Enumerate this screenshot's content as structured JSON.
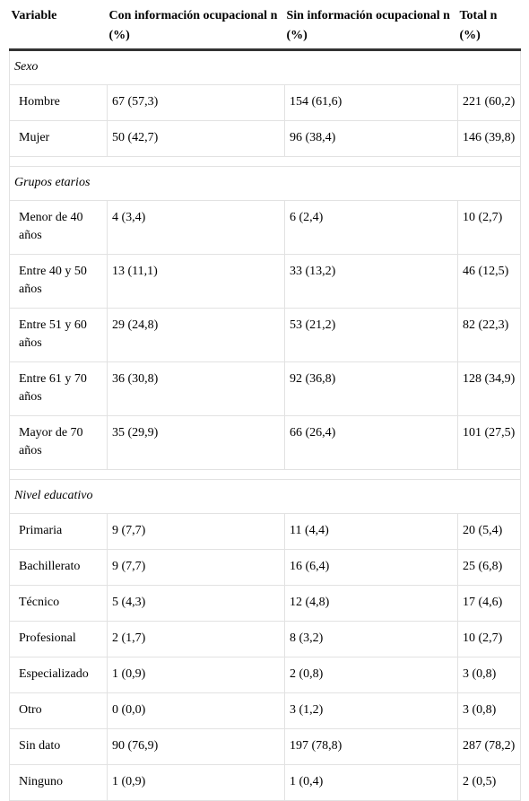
{
  "header": [
    "Variable",
    "Con información ocupacional n (%)",
    "Sin información ocupacional n (%)",
    "Total n (%)"
  ],
  "sections": [
    {
      "title": "Sexo",
      "rows": [
        [
          "Hombre",
          "67 (57,3)",
          "154 (61,6)",
          "221 (60,2)"
        ],
        [
          "Mujer",
          "50 (42,7)",
          "96 (38,4)",
          "146 (39,8)"
        ]
      ]
    },
    {
      "title": "Grupos etarios",
      "rows": [
        [
          "Menor de 40 años",
          "4 (3,4)",
          "6 (2,4)",
          "10 (2,7)"
        ],
        [
          "Entre 40 y 50 años",
          "13 (11,1)",
          "33 (13,2)",
          "46 (12,5)"
        ],
        [
          "Entre 51 y 60 años",
          "29 (24,8)",
          "53 (21,2)",
          "82 (22,3)"
        ],
        [
          "Entre 61 y 70 años",
          "36 (30,8)",
          "92 (36,8)",
          "128 (34,9)"
        ],
        [
          "Mayor de 70 años",
          "35 (29,9)",
          "66 (26,4)",
          "101 (27,5)"
        ]
      ]
    },
    {
      "title": "Nivel educativo",
      "rows": [
        [
          "Primaria",
          "9 (7,7)",
          "11 (4,4)",
          "20 (5,4)"
        ],
        [
          "Bachillerato",
          "9 (7,7)",
          "16 (6,4)",
          "25 (6,8)"
        ],
        [
          "Técnico",
          "5 (4,3)",
          "12 (4,8)",
          "17 (4,6)"
        ],
        [
          "Profesional",
          "2 (1,7)",
          "8 (3,2)",
          "10 (2,7)"
        ],
        [
          "Especializado",
          "1 (0,9)",
          "2 (0,8)",
          "3 (0,8)"
        ],
        [
          "Otro",
          "0 (0,0)",
          "3 (1,2)",
          "3 (0,8)"
        ],
        [
          "Sin dato",
          "90 (76,9)",
          "197 (78,8)",
          "287 (78,2)"
        ],
        [
          "Ninguno",
          "1 (0,9)",
          "1 (0,4)",
          "2 (0,5)"
        ]
      ]
    }
  ]
}
